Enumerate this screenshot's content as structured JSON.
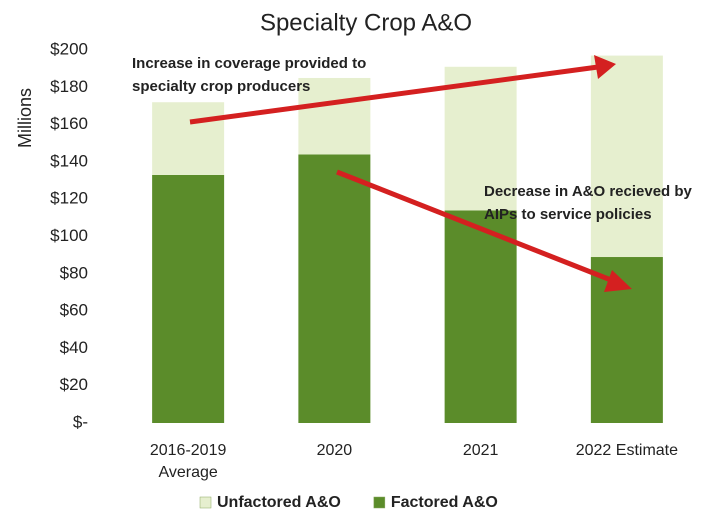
{
  "chart_data": {
    "type": "stacked_bar",
    "title": "Specialty Crop A&O",
    "y_label": "Millions",
    "categories": [
      "2016-2019 Average",
      "2020",
      "2021",
      "2022 Estimate"
    ],
    "series": [
      {
        "name": "Factored A&O",
        "color": "#5b8c2a",
        "values": [
          133,
          144,
          114,
          89
        ]
      },
      {
        "name": "Unfactored A&O",
        "color": "#e6efcf",
        "values": [
          39,
          41,
          77,
          108
        ]
      }
    ],
    "ylim": [
      0,
      200
    ],
    "yticks": [
      {
        "value": 0,
        "label": "$-"
      },
      {
        "value": 20,
        "label": "$20"
      },
      {
        "value": 40,
        "label": "$40"
      },
      {
        "value": 60,
        "label": "$60"
      },
      {
        "value": 80,
        "label": "$80"
      },
      {
        "value": 100,
        "label": "$100"
      },
      {
        "value": 120,
        "label": "$120"
      },
      {
        "value": 140,
        "label": "$140"
      },
      {
        "value": 160,
        "label": "$160"
      },
      {
        "value": 180,
        "label": "$180"
      },
      {
        "value": 200,
        "label": "$200"
      }
    ],
    "annotations": [
      "Increase in coverage provided to specialty crop producers",
      "Decrease in A&O recieved by AIPs to service policies"
    ]
  }
}
